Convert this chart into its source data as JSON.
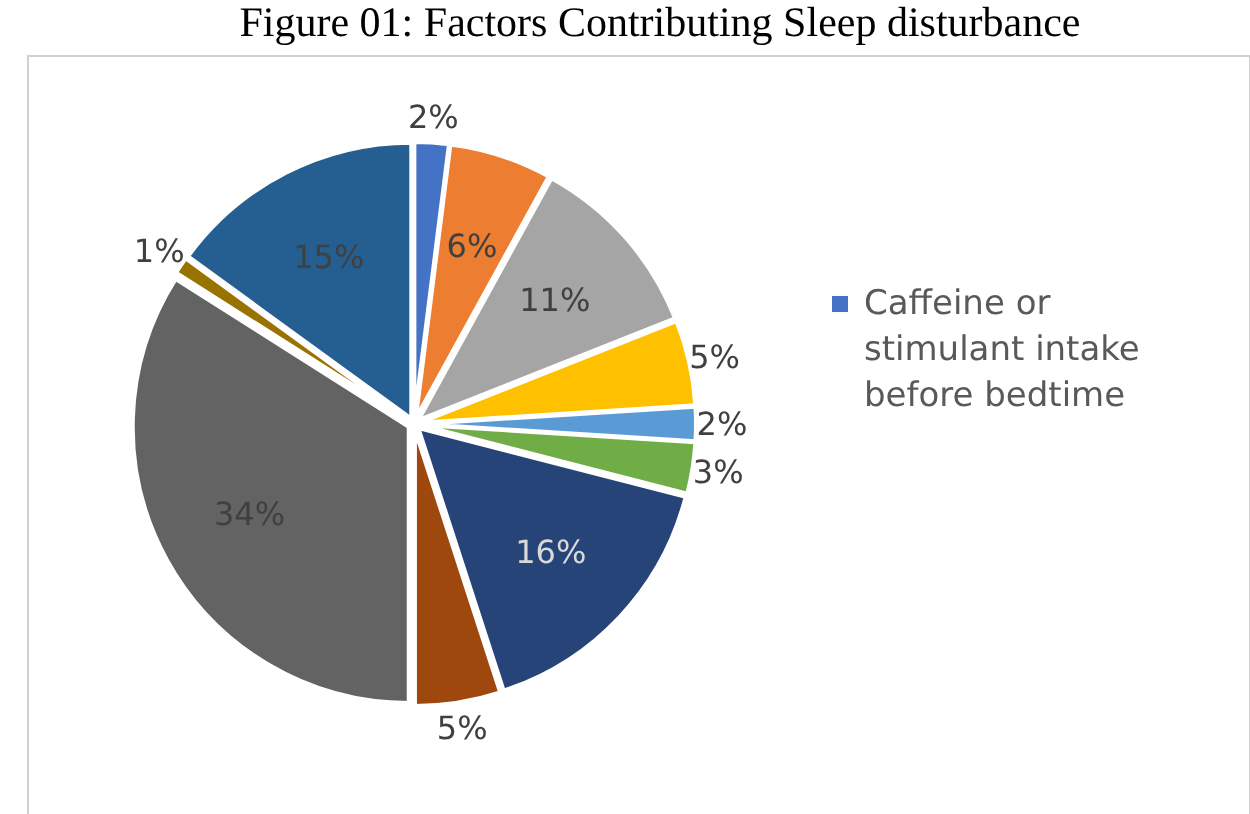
{
  "chart_data": {
    "type": "pie",
    "title": "Figure 01: Factors Contributing Sleep disturbance",
    "categories": [
      "Caffeine or stimulant intake before bedtime",
      null,
      null,
      null,
      null,
      null,
      null,
      null,
      null,
      null,
      null
    ],
    "values": [
      2,
      6,
      11,
      5,
      2,
      3,
      16,
      5,
      34,
      1,
      15
    ],
    "value_labels": [
      "2%",
      "6%",
      "11%",
      "5%",
      "2%",
      "3%",
      "16%",
      "5%",
      "34%",
      "1%",
      "15%"
    ],
    "colors": [
      "#4472c4",
      "#ed7d31",
      "#a5a5a5",
      "#ffc000",
      "#5b9bd5",
      "#70ad47",
      "#264478",
      "#9e480e",
      "#636363",
      "#997300",
      "#255e91"
    ],
    "legend": "right"
  }
}
